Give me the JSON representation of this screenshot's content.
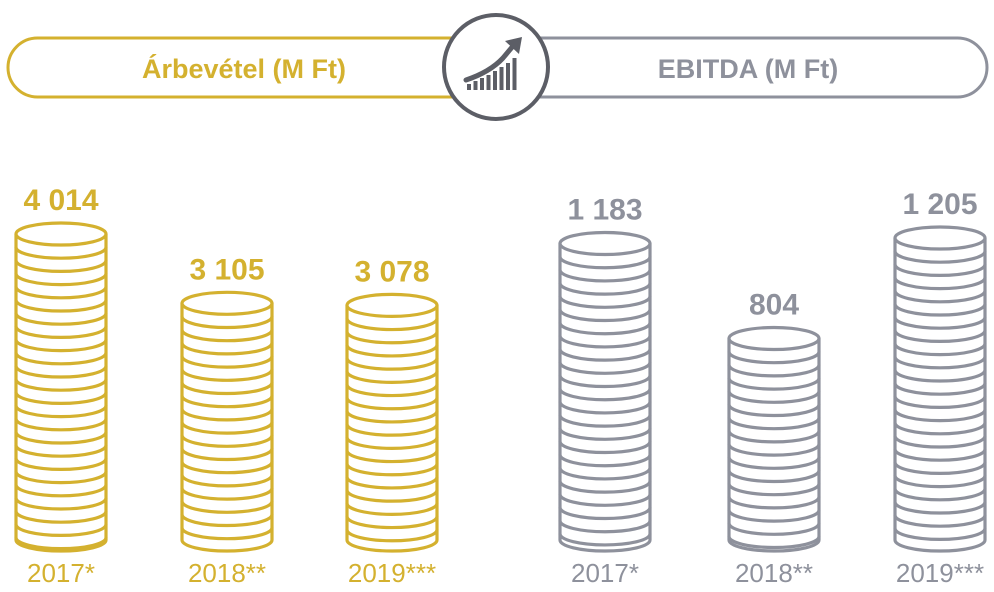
{
  "colors": {
    "revenue": "#d4b12f",
    "ebitda": "#8e919c",
    "icon_ring": "#5c5e66",
    "background": "#ffffff"
  },
  "header": {
    "revenue_title": "Árbevétel (M Ft)",
    "ebitda_title": "EBITDA (M Ft)",
    "center_icon": "growth-chart-icon"
  },
  "chart_data": [
    {
      "type": "bar",
      "categories": [
        "2017*",
        "2018**",
        "2019***"
      ],
      "value_labels": [
        "4 014",
        "3 105",
        "3 078"
      ],
      "values": [
        4014,
        3105,
        3078
      ],
      "title": "Árbevétel (M Ft)",
      "xlabel": "",
      "ylabel": "",
      "grid": false,
      "legend": "none",
      "color": "#d4b12f"
    },
    {
      "type": "bar",
      "categories": [
        "2017*",
        "2018**",
        "2019***"
      ],
      "value_labels": [
        "1 183",
        "804",
        "1 205"
      ],
      "values": [
        1183,
        804,
        1205
      ],
      "title": "EBITDA (M Ft)",
      "xlabel": "",
      "ylabel": "",
      "grid": false,
      "legend": "none",
      "color": "#8e919c"
    }
  ]
}
